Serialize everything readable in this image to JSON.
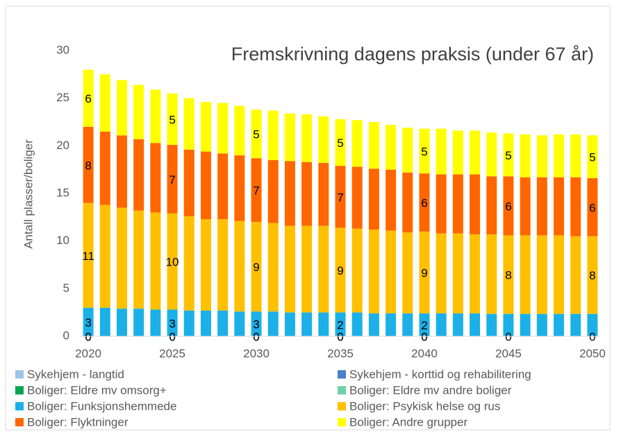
{
  "chart_data": {
    "type": "stacked_bar",
    "title": "Fremskrivning dagens praksis (under 67 år)",
    "y_label": "Antall plasser/boliger",
    "categories": [
      "2020",
      null,
      null,
      null,
      null,
      "2025",
      null,
      null,
      null,
      null,
      "2030",
      null,
      null,
      null,
      null,
      "2035",
      null,
      null,
      null,
      null,
      "2040",
      null,
      null,
      null,
      null,
      "2045",
      null,
      null,
      null,
      null,
      "2050"
    ],
    "ylim": [
      0,
      30
    ],
    "yticks": [
      0,
      5,
      10,
      15,
      20,
      25,
      30
    ],
    "grid": false,
    "legend": "bottom",
    "series": [
      {
        "name": "Sykehjem - langtid",
        "color": "#9dc3e6",
        "values": [
          0,
          0,
          0,
          0,
          0,
          0,
          0,
          0,
          0,
          0,
          0,
          0,
          0,
          0,
          0,
          0,
          0,
          0,
          0,
          0,
          0,
          0,
          0,
          0,
          0,
          0,
          0,
          0,
          0,
          0,
          0
        ],
        "value_labels": [
          "0",
          null,
          null,
          null,
          null,
          "0",
          null,
          null,
          null,
          null,
          "0",
          null,
          null,
          null,
          null,
          "0",
          null,
          null,
          null,
          null,
          "0",
          null,
          null,
          null,
          null,
          "0",
          null,
          null,
          null,
          null,
          "0"
        ]
      },
      {
        "name": "Sykehjem - korttid og rehabilitering",
        "color": "#4a7fc9",
        "values": [
          0,
          0,
          0,
          0,
          0,
          0,
          0,
          0,
          0,
          0,
          0,
          0,
          0,
          0,
          0,
          0,
          0,
          0,
          0,
          0,
          0,
          0,
          0,
          0,
          0,
          0,
          0,
          0,
          0,
          0,
          0
        ]
      },
      {
        "name": "Boliger: Eldre mv omsorg+",
        "color": "#00a651",
        "values": [
          0,
          0,
          0,
          0,
          0,
          0,
          0,
          0,
          0,
          0,
          0,
          0,
          0,
          0,
          0,
          0,
          0,
          0,
          0,
          0,
          0,
          0,
          0,
          0,
          0,
          0,
          0,
          0,
          0,
          0,
          0
        ],
        "value_labels": [
          "0",
          null,
          null,
          null,
          null,
          "0",
          null,
          null,
          null,
          null,
          "0",
          null,
          null,
          null,
          null,
          "0",
          null,
          null,
          null,
          null,
          "0",
          null,
          null,
          null,
          null,
          null,
          null,
          null,
          null,
          null,
          null
        ]
      },
      {
        "name": "Boliger: Eldre mv andre boliger",
        "color": "#6fd3a8",
        "values": [
          0,
          0,
          0,
          0,
          0,
          0,
          0,
          0,
          0,
          0,
          0,
          0,
          0,
          0,
          0,
          0,
          0,
          0,
          0,
          0,
          0,
          0,
          0,
          0,
          0,
          0,
          0,
          0,
          0,
          0,
          0
        ]
      },
      {
        "name": "Boliger: Funksjonshemmede",
        "color": "#1cb0e8",
        "values": [
          3.0,
          3.0,
          2.9,
          2.9,
          2.8,
          2.8,
          2.7,
          2.7,
          2.7,
          2.6,
          2.6,
          2.6,
          2.5,
          2.5,
          2.5,
          2.5,
          2.5,
          2.4,
          2.4,
          2.4,
          2.4,
          2.4,
          2.4,
          2.4,
          2.35,
          2.35,
          2.35,
          2.35,
          2.35,
          2.35,
          2.35
        ],
        "value_labels": [
          "3",
          null,
          null,
          null,
          null,
          "3",
          null,
          null,
          null,
          null,
          "3",
          null,
          null,
          null,
          null,
          "2",
          null,
          null,
          null,
          null,
          "2",
          null,
          null,
          null,
          null,
          null,
          null,
          null,
          null,
          null,
          null
        ]
      },
      {
        "name": "Boliger: Psykisk helse og rus",
        "color": "#ffc000",
        "values": [
          11.0,
          10.8,
          10.6,
          10.3,
          10.2,
          10.1,
          9.9,
          9.6,
          9.6,
          9.5,
          9.4,
          9.3,
          9.1,
          9.1,
          9.1,
          8.9,
          8.8,
          8.8,
          8.7,
          8.5,
          8.6,
          8.4,
          8.4,
          8.3,
          8.35,
          8.25,
          8.25,
          8.25,
          8.25,
          8.15,
          8.15
        ],
        "value_labels": [
          "11",
          null,
          null,
          null,
          null,
          "10",
          null,
          null,
          null,
          null,
          "9",
          null,
          null,
          null,
          null,
          "9",
          null,
          null,
          null,
          null,
          "9",
          null,
          null,
          null,
          null,
          "8",
          null,
          null,
          null,
          null,
          "8"
        ]
      },
      {
        "name": "Boliger: Flyktninger",
        "color": "#ff6600",
        "values": [
          8.0,
          7.7,
          7.6,
          7.5,
          7.3,
          7.2,
          7.0,
          7.1,
          6.9,
          6.9,
          6.7,
          6.6,
          6.8,
          6.7,
          6.6,
          6.5,
          6.5,
          6.4,
          6.4,
          6.3,
          6.1,
          6.2,
          6.2,
          6.3,
          6.1,
          6.2,
          6.1,
          6.1,
          6.1,
          6.2,
          6.1
        ],
        "value_labels": [
          "8",
          null,
          null,
          null,
          null,
          "7",
          null,
          null,
          null,
          null,
          "7",
          null,
          null,
          null,
          null,
          "7",
          null,
          null,
          null,
          null,
          "6",
          null,
          null,
          null,
          null,
          "6",
          null,
          null,
          null,
          null,
          "6"
        ]
      },
      {
        "name": "Boliger: Andre grupper",
        "color": "#ffff00",
        "values": [
          6.0,
          6.0,
          5.8,
          5.7,
          5.6,
          5.4,
          5.4,
          5.2,
          5.3,
          5.2,
          5.1,
          5.2,
          5.0,
          5.0,
          4.9,
          4.9,
          4.9,
          4.9,
          4.7,
          4.7,
          4.7,
          4.8,
          4.6,
          4.6,
          4.6,
          4.5,
          4.5,
          4.4,
          4.5,
          4.5,
          4.5
        ],
        "value_labels": [
          "6",
          null,
          null,
          null,
          null,
          "5",
          null,
          null,
          null,
          null,
          "5",
          null,
          null,
          null,
          null,
          "5",
          null,
          null,
          null,
          null,
          "5",
          null,
          null,
          null,
          null,
          "5",
          null,
          null,
          null,
          null,
          "5"
        ]
      }
    ]
  }
}
